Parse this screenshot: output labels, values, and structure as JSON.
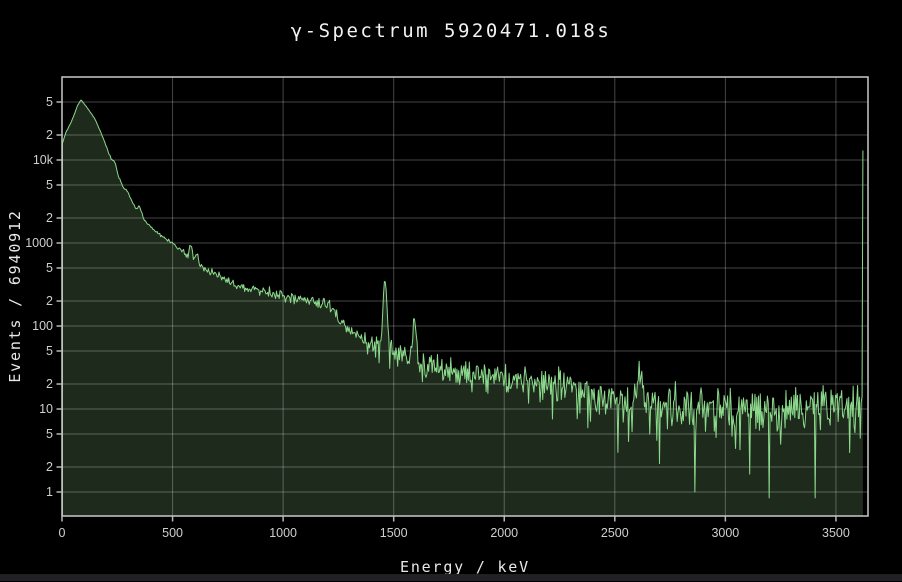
{
  "chart_data": {
    "type": "area",
    "title": "γ-Spectrum 5920471.018s",
    "xlabel": "Energy / keV",
    "ylabel": "Events / 6940912",
    "x_range": [
      0,
      3645
    ],
    "y_range": [
      0.514,
      100000
    ],
    "y_scale": "log",
    "grid": true,
    "x_ticks": [
      {
        "v": 0,
        "label": "0"
      },
      {
        "v": 500,
        "label": "500"
      },
      {
        "v": 1000,
        "label": "1000"
      },
      {
        "v": 1500,
        "label": "1500"
      },
      {
        "v": 2000,
        "label": "2000"
      },
      {
        "v": 2500,
        "label": "2500"
      },
      {
        "v": 3000,
        "label": "3000"
      },
      {
        "v": 3500,
        "label": "3500"
      }
    ],
    "y_ticks": [
      {
        "v": 1,
        "label": "1"
      },
      {
        "v": 2,
        "label": "2"
      },
      {
        "v": 5,
        "label": "5"
      },
      {
        "v": 10,
        "label": "10"
      },
      {
        "v": 20,
        "label": "2"
      },
      {
        "v": 50,
        "label": "5"
      },
      {
        "v": 100,
        "label": "100"
      },
      {
        "v": 200,
        "label": "2"
      },
      {
        "v": 500,
        "label": "5"
      },
      {
        "v": 1000,
        "label": "1000"
      },
      {
        "v": 2000,
        "label": "2"
      },
      {
        "v": 5000,
        "label": "5"
      },
      {
        "v": 10000,
        "label": "10k"
      },
      {
        "v": 20000,
        "label": "2"
      },
      {
        "v": 50000,
        "label": "5"
      }
    ],
    "bin_width": 4,
    "bin_start": 2,
    "data_end": 3618,
    "noise_seed": 20,
    "noise_factor": 1.05,
    "continuum_anchors": [
      [
        2,
        16000
      ],
      [
        18,
        21500
      ],
      [
        45,
        30000
      ],
      [
        70,
        45000
      ],
      [
        85,
        53000
      ],
      [
        100,
        48000
      ],
      [
        113,
        43000
      ],
      [
        150,
        31000
      ],
      [
        187,
        18000
      ],
      [
        232,
        8800
      ],
      [
        277,
        4700
      ],
      [
        307,
        3500
      ],
      [
        345,
        2350
      ],
      [
        399,
        1550
      ],
      [
        460,
        1170
      ],
      [
        533,
        850
      ],
      [
        600,
        600
      ],
      [
        655,
        470
      ],
      [
        720,
        390
      ],
      [
        790,
        310
      ],
      [
        896,
        262
      ],
      [
        1048,
        213
      ],
      [
        1195,
        185
      ],
      [
        1215,
        170
      ],
      [
        1245,
        130
      ],
      [
        1270,
        105
      ],
      [
        1300,
        88
      ],
      [
        1340,
        72
      ],
      [
        1390,
        62
      ],
      [
        1440,
        57
      ],
      [
        1475,
        54
      ],
      [
        1510,
        47
      ],
      [
        1560,
        44
      ],
      [
        1620,
        36
      ],
      [
        1700,
        32
      ],
      [
        1800,
        28
      ],
      [
        1900,
        26
      ],
      [
        2000,
        24
      ],
      [
        2150,
        21
      ],
      [
        2320,
        19.5
      ],
      [
        2430,
        13.5
      ],
      [
        2530,
        11.5
      ],
      [
        2650,
        11.8
      ],
      [
        2800,
        10.3
      ],
      [
        3000,
        10.6
      ],
      [
        3200,
        10.2
      ],
      [
        3400,
        10.5
      ],
      [
        3618,
        10.5
      ]
    ],
    "peaks": [
      {
        "center": 238,
        "sigma": 7,
        "amp": 1500
      },
      {
        "center": 295,
        "sigma": 6,
        "amp": 420
      },
      {
        "center": 352,
        "sigma": 7,
        "amp": 550
      },
      {
        "center": 583,
        "sigma": 6,
        "amp": 260
      },
      {
        "center": 609,
        "sigma": 6,
        "amp": 180
      },
      {
        "center": 911,
        "sigma": 8,
        "amp": 28
      },
      {
        "center": 1461,
        "sigma": 7,
        "amp": 290
      },
      {
        "center": 1593,
        "sigma": 7,
        "amp": 78
      },
      {
        "center": 2614,
        "sigma": 9,
        "amp": 16
      }
    ],
    "down_spikes": [
      [
        2514,
        3.0
      ],
      [
        2702,
        2.2
      ],
      [
        2862,
        1.0
      ]
    ],
    "overflow_bin": {
      "energy": 3622,
      "value": 13000
    },
    "colors": {
      "background": "#000000",
      "line": "#8bd98b",
      "fill": "#1e2b1c",
      "grid": "rgba(255,255,255,0.27)",
      "border": "#c9c9c9",
      "tick": "#b8b8b8",
      "tick_label": "#cfcfcf",
      "title_text": "#f2f2f2",
      "axis_text": "#e8e8e8"
    }
  }
}
